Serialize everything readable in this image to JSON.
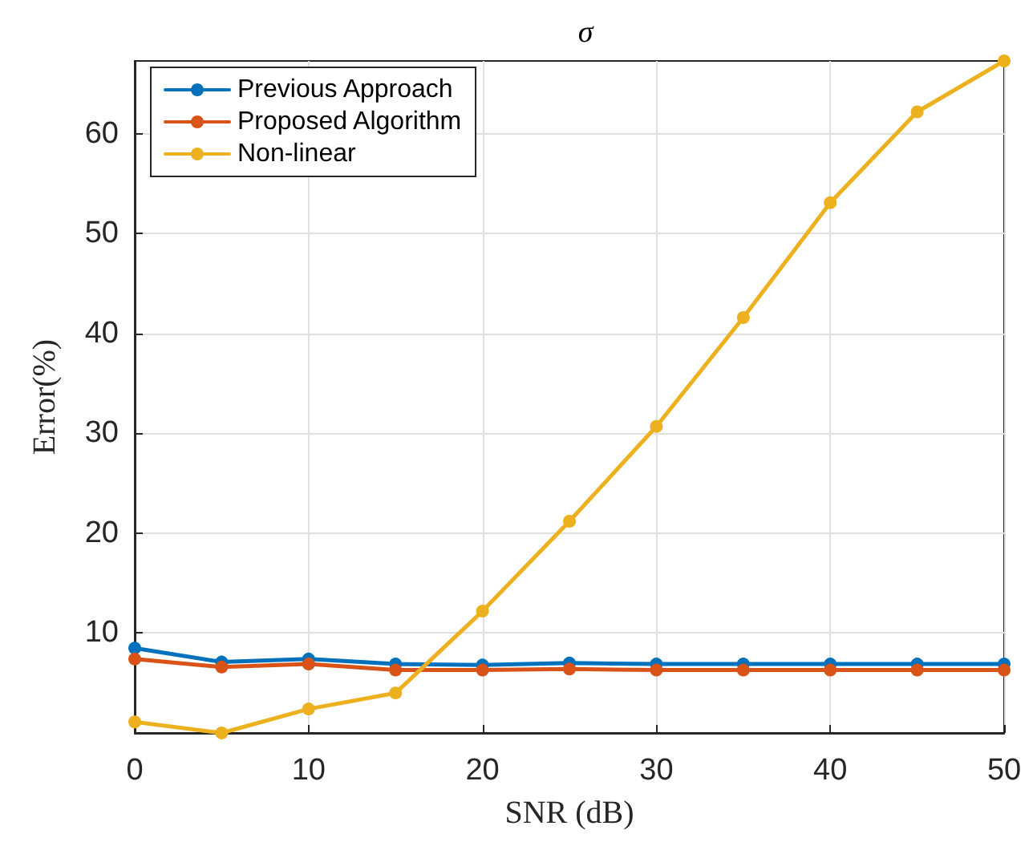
{
  "chart_data": {
    "type": "line",
    "title": "σ",
    "xlabel": "SNR (dB)",
    "ylabel": "Error(%)",
    "x": [
      0,
      5,
      10,
      15,
      20,
      25,
      30,
      35,
      40,
      45,
      50
    ],
    "series": [
      {
        "name": "Previous Approach",
        "color": "#0072bd",
        "values": [
          8.5,
          7.1,
          7.4,
          6.9,
          6.8,
          7.0,
          6.9,
          6.9,
          6.9,
          6.9,
          6.9
        ]
      },
      {
        "name": "Proposed Algorithm",
        "color": "#d95319",
        "values": [
          7.4,
          6.6,
          6.9,
          6.3,
          6.3,
          6.4,
          6.3,
          6.3,
          6.3,
          6.3,
          6.3
        ]
      },
      {
        "name": "Non-linear",
        "color": "#edb120",
        "values": [
          1.1,
          0,
          2.4,
          4.0,
          12.2,
          21.2,
          30.7,
          41.6,
          53.1,
          62.2,
          67.3
        ]
      }
    ],
    "xlim": [
      0,
      50
    ],
    "xticks": [
      0,
      10,
      20,
      30,
      40,
      50
    ],
    "ylim": [
      0,
      67.3
    ],
    "yticks": [
      10,
      20,
      30,
      40,
      50,
      60
    ],
    "grid": true,
    "legend": "top left",
    "marker": "circle",
    "line_style": "solid"
  }
}
